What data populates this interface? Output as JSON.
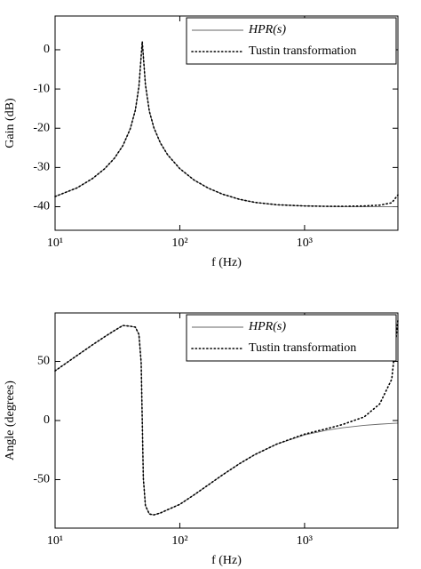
{
  "chart_data": [
    {
      "type": "line",
      "xlabel": "f (Hz)",
      "ylabel": "Gain (dB)",
      "log_x": true,
      "legend": "upper right",
      "x": [
        10,
        15,
        20,
        25,
        30,
        35,
        40,
        44,
        47,
        49,
        50,
        51,
        53,
        57,
        62,
        70,
        80,
        100,
        130,
        170,
        220,
        300,
        400,
        600,
        1000,
        1500,
        2000,
        3000,
        4000,
        5000,
        5600
      ],
      "xlim": [
        10,
        5600
      ],
      "xticks": [
        {
          "value": 10,
          "label": "10¹"
        },
        {
          "value": 100,
          "label": "10²"
        },
        {
          "value": 1000,
          "label": "10³"
        }
      ],
      "ylim": [
        -46,
        8.6
      ],
      "yticks": [
        -40,
        -30,
        -20,
        -10,
        0
      ],
      "series": [
        {
          "name": "HPR(s)",
          "color": "#666666",
          "style": "solid",
          "values": [
            -37.4,
            -35.2,
            -32.8,
            -30.3,
            -27.6,
            -24.4,
            -20.2,
            -15.4,
            -9.4,
            -1.7,
            2.1,
            -1.6,
            -8.9,
            -15.7,
            -19.9,
            -23.8,
            -26.8,
            -30.3,
            -33.2,
            -35.3,
            -36.8,
            -38.1,
            -38.9,
            -39.5,
            -39.8,
            -39.9,
            -39.95,
            -40.0,
            -40.0,
            -40.0,
            -40.0
          ]
        },
        {
          "name": "Tustin transformation",
          "color": "#000000",
          "style": "dotted",
          "values": [
            -37.4,
            -35.2,
            -32.8,
            -30.3,
            -27.6,
            -24.4,
            -20.2,
            -15.4,
            -9.4,
            -1.7,
            2.1,
            -1.6,
            -8.9,
            -15.7,
            -19.9,
            -23.8,
            -26.8,
            -30.3,
            -33.2,
            -35.3,
            -36.8,
            -38.1,
            -38.9,
            -39.5,
            -39.8,
            -39.9,
            -39.9,
            -39.8,
            -39.6,
            -39.0,
            -37.0
          ]
        }
      ]
    },
    {
      "type": "line",
      "xlabel": "f (Hz)",
      "ylabel": "Angle (degrees)",
      "log_x": true,
      "legend": "upper right",
      "x": [
        10,
        15,
        20,
        25,
        30,
        35,
        40,
        44,
        47,
        49,
        50,
        51,
        53,
        57,
        62,
        70,
        80,
        100,
        130,
        170,
        220,
        300,
        400,
        600,
        1000,
        1500,
        2000,
        3000,
        4000,
        5000,
        5600
      ],
      "xlim": [
        10,
        5600
      ],
      "xticks": [
        {
          "value": 10,
          "label": "10¹"
        },
        {
          "value": 100,
          "label": "10²"
        },
        {
          "value": 1000,
          "label": "10³"
        }
      ],
      "ylim": [
        -91,
        91
      ],
      "yticks": [
        -50,
        0,
        50
      ],
      "series": [
        {
          "name": "HPR(s)",
          "color": "#666666",
          "style": "solid",
          "values": [
            42.0,
            55.0,
            64.1,
            70.9,
            76.2,
            80.4,
            79.8,
            79.0,
            72.9,
            49.0,
            0,
            -48.6,
            -72.0,
            -79.1,
            -79.8,
            -78.2,
            -75.4,
            -70.9,
            -62.9,
            -54.3,
            -46.0,
            -36.6,
            -28.8,
            -19.9,
            -12.2,
            -8.2,
            -6.2,
            -4.1,
            -3.1,
            -2.5,
            -2.2
          ]
        },
        {
          "name": "Tustin transformation",
          "color": "#000000",
          "style": "dotted",
          "values": [
            42.0,
            55.0,
            64.1,
            70.9,
            76.2,
            80.4,
            79.8,
            79.0,
            72.9,
            49.0,
            0,
            -48.6,
            -72.0,
            -79.1,
            -79.8,
            -78.2,
            -75.4,
            -70.9,
            -62.9,
            -54.3,
            -46.0,
            -36.6,
            -28.8,
            -19.9,
            -11.5,
            -7,
            -3.5,
            3,
            14,
            35,
            85
          ]
        }
      ]
    }
  ]
}
